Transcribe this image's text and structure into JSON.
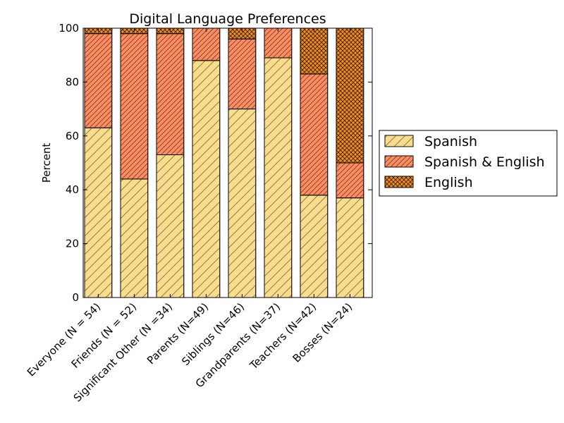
{
  "chart_data": {
    "type": "bar",
    "stacked": true,
    "title": "Digital Language Preferences",
    "xlabel": "",
    "ylabel": "Percent",
    "ylim": [
      0,
      100
    ],
    "yticks": [
      0,
      20,
      40,
      60,
      80,
      100
    ],
    "grid": false,
    "legend_position": "right",
    "categories": [
      "Everyone (N = 54)",
      "Friends (N = 52)",
      "Significant Other (N =34)",
      "Parents (N=49)",
      "Siblings (N=46)",
      "Grandparents (N=37)",
      "Teachers (N=42)",
      "Bosses (N=24)"
    ],
    "series": [
      {
        "name": "Spanish",
        "color": "#f9dc8c",
        "hatch": "single",
        "values": [
          63,
          44,
          53,
          88,
          70,
          89,
          38,
          37
        ]
      },
      {
        "name": "Spanish & English",
        "color": "#fc8d62",
        "hatch": "double",
        "values": [
          35,
          54,
          45,
          12,
          26,
          11,
          45,
          13
        ]
      },
      {
        "name": "English",
        "color": "#f28c1a",
        "hatch": "cross",
        "values": [
          2,
          2,
          2,
          0,
          4,
          0,
          17,
          50
        ]
      }
    ]
  }
}
